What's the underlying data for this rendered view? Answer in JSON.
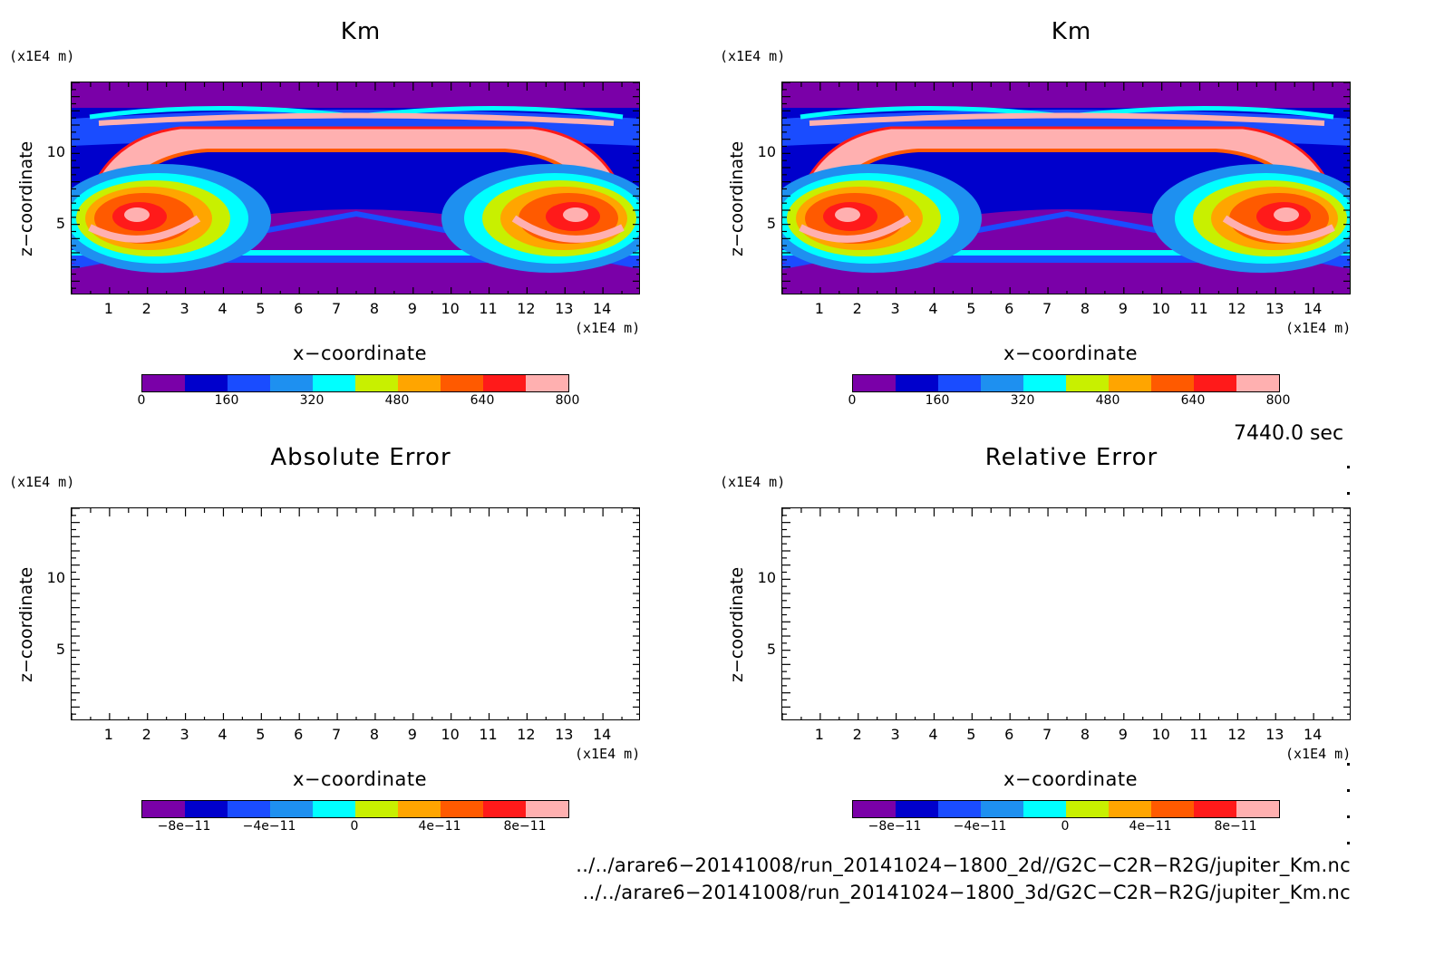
{
  "colors": {
    "levels": [
      "#7a00a8",
      "#0000cc",
      "#1a4cff",
      "#1e90f0",
      "#00ffff",
      "#c8f000",
      "#ffa500",
      "#ff5a00",
      "#ff1a1a",
      "#ffb0b0"
    ]
  },
  "panels": [
    {
      "id": "p1",
      "title": "Km",
      "ylabel": "z−coordinate",
      "xlabel": "x−coordinate",
      "xunit": "(x1E4 m)",
      "yunit": "(x1E4 m)",
      "filled": true,
      "cbar_labels": [
        "0",
        "160",
        "320",
        "480",
        "640",
        "800"
      ]
    },
    {
      "id": "p2",
      "title": "Km",
      "ylabel": "z−coordinate",
      "xlabel": "x−coordinate",
      "xunit": "(x1E4 m)",
      "yunit": "(x1E4 m)",
      "filled": true,
      "cbar_labels": [
        "0",
        "160",
        "320",
        "480",
        "640",
        "800"
      ]
    },
    {
      "id": "p3",
      "title": "Absolute Error",
      "ylabel": "z−coordinate",
      "xlabel": "x−coordinate",
      "xunit": "(x1E4 m)",
      "yunit": "(x1E4 m)",
      "filled": false,
      "cbar_labels": [
        "−8e−11",
        "−4e−11",
        "0",
        "4e−11",
        "8e−11"
      ]
    },
    {
      "id": "p4",
      "title": "Relative Error",
      "ylabel": "z−coordinate",
      "xlabel": "x−coordinate",
      "xunit": "(x1E4 m)",
      "yunit": "(x1E4 m)",
      "filled": false,
      "cbar_labels": [
        "−8e−11",
        "−4e−11",
        "0",
        "4e−11",
        "8e−11"
      ]
    }
  ],
  "xticks": [
    "1",
    "2",
    "3",
    "4",
    "5",
    "6",
    "7",
    "8",
    "9",
    "10",
    "11",
    "12",
    "13",
    "14"
  ],
  "yticks": [
    "5",
    "10"
  ],
  "timestamp": "7440.0 sec",
  "files": [
    "../../arare6−20141008/run_20141024−1800_2d//G2C−C2R−R2G/jupiter_Km.nc",
    "../../arare6−20141008/run_20141024−1800_3d/G2C−C2R−R2G/jupiter_Km.nc"
  ],
  "chart_data": [
    {
      "type": "heatmap",
      "title": "Km",
      "xlabel": "x−coordinate",
      "ylabel": "z−coordinate",
      "xlim": [
        0,
        15
      ],
      "ylim": [
        0,
        15
      ],
      "xunit": "(x1E4 m)",
      "yunit": "(x1E4 m)",
      "colorbar": {
        "min": 0,
        "max": 800,
        "labels": [
          0,
          160,
          320,
          480,
          640,
          800
        ]
      }
    },
    {
      "type": "heatmap",
      "title": "Km",
      "xlabel": "x−coordinate",
      "ylabel": "z−coordinate",
      "xlim": [
        0,
        15
      ],
      "ylim": [
        0,
        15
      ],
      "xunit": "(x1E4 m)",
      "yunit": "(x1E4 m)",
      "colorbar": {
        "min": 0,
        "max": 800,
        "labels": [
          0,
          160,
          320,
          480,
          640,
          800
        ]
      }
    },
    {
      "type": "heatmap",
      "title": "Absolute Error",
      "xlabel": "x−coordinate",
      "ylabel": "z−coordinate",
      "xlim": [
        0,
        15
      ],
      "ylim": [
        0,
        15
      ],
      "empty": true,
      "colorbar": {
        "min": -1e-10,
        "max": 1e-10,
        "labels": [
          "-8e-11",
          "-4e-11",
          "0",
          "4e-11",
          "8e-11"
        ]
      }
    },
    {
      "type": "heatmap",
      "title": "Relative Error",
      "xlabel": "x−coordinate",
      "ylabel": "z−coordinate",
      "xlim": [
        0,
        15
      ],
      "ylim": [
        0,
        15
      ],
      "empty": true,
      "colorbar": {
        "min": -1e-10,
        "max": 1e-10,
        "labels": [
          "-8e-11",
          "-4e-11",
          "0",
          "4e-11",
          "8e-11"
        ]
      }
    }
  ]
}
